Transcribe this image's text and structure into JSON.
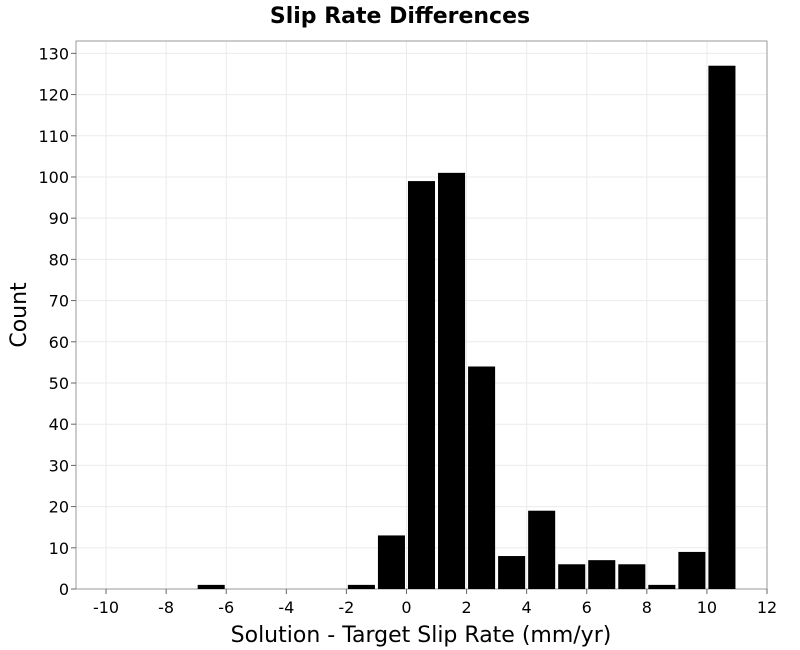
{
  "chart_data": {
    "type": "bar",
    "title": "Slip Rate Differences",
    "xlabel": "Solution - Target Slip Rate (mm/yr)",
    "ylabel": "Count",
    "xlim": [
      -11,
      12
    ],
    "ylim": [
      0,
      133
    ],
    "x_ticks": [
      -10,
      -8,
      -6,
      -4,
      -2,
      0,
      2,
      4,
      6,
      8,
      10,
      12
    ],
    "y_ticks": [
      0,
      10,
      20,
      30,
      40,
      50,
      60,
      70,
      80,
      90,
      100,
      110,
      120,
      130
    ],
    "bin_width": 1,
    "bins": [
      {
        "start": -7,
        "end": -6,
        "count": 1
      },
      {
        "start": -2,
        "end": -1,
        "count": 1
      },
      {
        "start": -1,
        "end": 0,
        "count": 13
      },
      {
        "start": 0,
        "end": 1,
        "count": 99
      },
      {
        "start": 1,
        "end": 2,
        "count": 101
      },
      {
        "start": 2,
        "end": 3,
        "count": 54
      },
      {
        "start": 3,
        "end": 4,
        "count": 8
      },
      {
        "start": 4,
        "end": 5,
        "count": 19
      },
      {
        "start": 5,
        "end": 6,
        "count": 6
      },
      {
        "start": 6,
        "end": 7,
        "count": 7
      },
      {
        "start": 7,
        "end": 8,
        "count": 6
      },
      {
        "start": 8,
        "end": 9,
        "count": 1
      },
      {
        "start": 9,
        "end": 10,
        "count": 9
      },
      {
        "start": 10,
        "end": 11,
        "count": 127
      }
    ],
    "bar_color": "#000000",
    "grid": true,
    "legend": "none"
  }
}
